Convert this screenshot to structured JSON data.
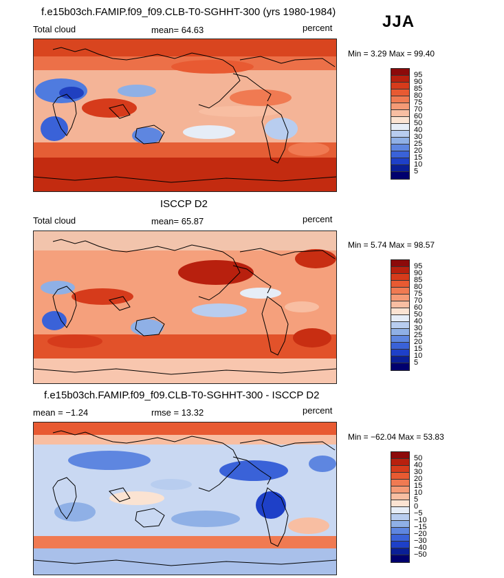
{
  "season": "JJA",
  "panels": [
    {
      "title": "f.e15b03ch.FAMIP.f09_f09.CLB-T0-SGHHT-300 (yrs 1980-1984)",
      "left_label": "Total cloud",
      "center_label": "mean=  64.63",
      "units": "percent",
      "minmax": "Min =    3.29  Max =   99.40",
      "colorbar": {
        "labels": [
          "95",
          "90",
          "85",
          "80",
          "75",
          "70",
          "60",
          "50",
          "40",
          "30",
          "25",
          "20",
          "15",
          "10",
          "5"
        ],
        "colors": [
          "#8c0a0a",
          "#b8200e",
          "#d63b1b",
          "#e85a32",
          "#f07a52",
          "#f59a76",
          "#f8bea2",
          "#fbe3d2",
          "#e6edf7",
          "#b8cdef",
          "#8fb0e6",
          "#5e86e0",
          "#3a62d8",
          "#1e40c8",
          "#0a1f96",
          "#00006e"
        ]
      }
    },
    {
      "title": "ISCCP D2",
      "left_label": "Total cloud",
      "center_label": "mean=  65.87",
      "units": "percent",
      "minmax": "Min =    5.74  Max =   98.57",
      "colorbar": {
        "labels": [
          "95",
          "90",
          "85",
          "80",
          "75",
          "70",
          "60",
          "50",
          "40",
          "30",
          "25",
          "20",
          "15",
          "10",
          "5"
        ],
        "colors": [
          "#8c0a0a",
          "#b8200e",
          "#d63b1b",
          "#e85a32",
          "#f07a52",
          "#f59a76",
          "#f8bea2",
          "#fbe3d2",
          "#e6edf7",
          "#b8cdef",
          "#8fb0e6",
          "#5e86e0",
          "#3a62d8",
          "#1e40c8",
          "#0a1f96",
          "#00006e"
        ]
      }
    },
    {
      "title": "f.e15b03ch.FAMIP.f09_f09.CLB-T0-SGHHT-300 - ISCCP D2",
      "left_label": "mean =   −1.24",
      "center_label": "rmse =   13.32",
      "units": "percent",
      "minmax": "Min =  −62.04  Max =   53.83",
      "colorbar": {
        "labels": [
          "50",
          "40",
          "30",
          "20",
          "15",
          "10",
          "5",
          "0",
          "−5",
          "−10",
          "−15",
          "−20",
          "−30",
          "−40",
          "−50"
        ],
        "colors": [
          "#8c0a0a",
          "#b8200e",
          "#d63b1b",
          "#e85a32",
          "#f07a52",
          "#f59a76",
          "#f8bea2",
          "#fbe3d2",
          "#e6edf7",
          "#b8cdef",
          "#8fb0e6",
          "#5e86e0",
          "#3a62d8",
          "#1e40c8",
          "#0a1f96",
          "#00006e"
        ]
      }
    }
  ]
}
